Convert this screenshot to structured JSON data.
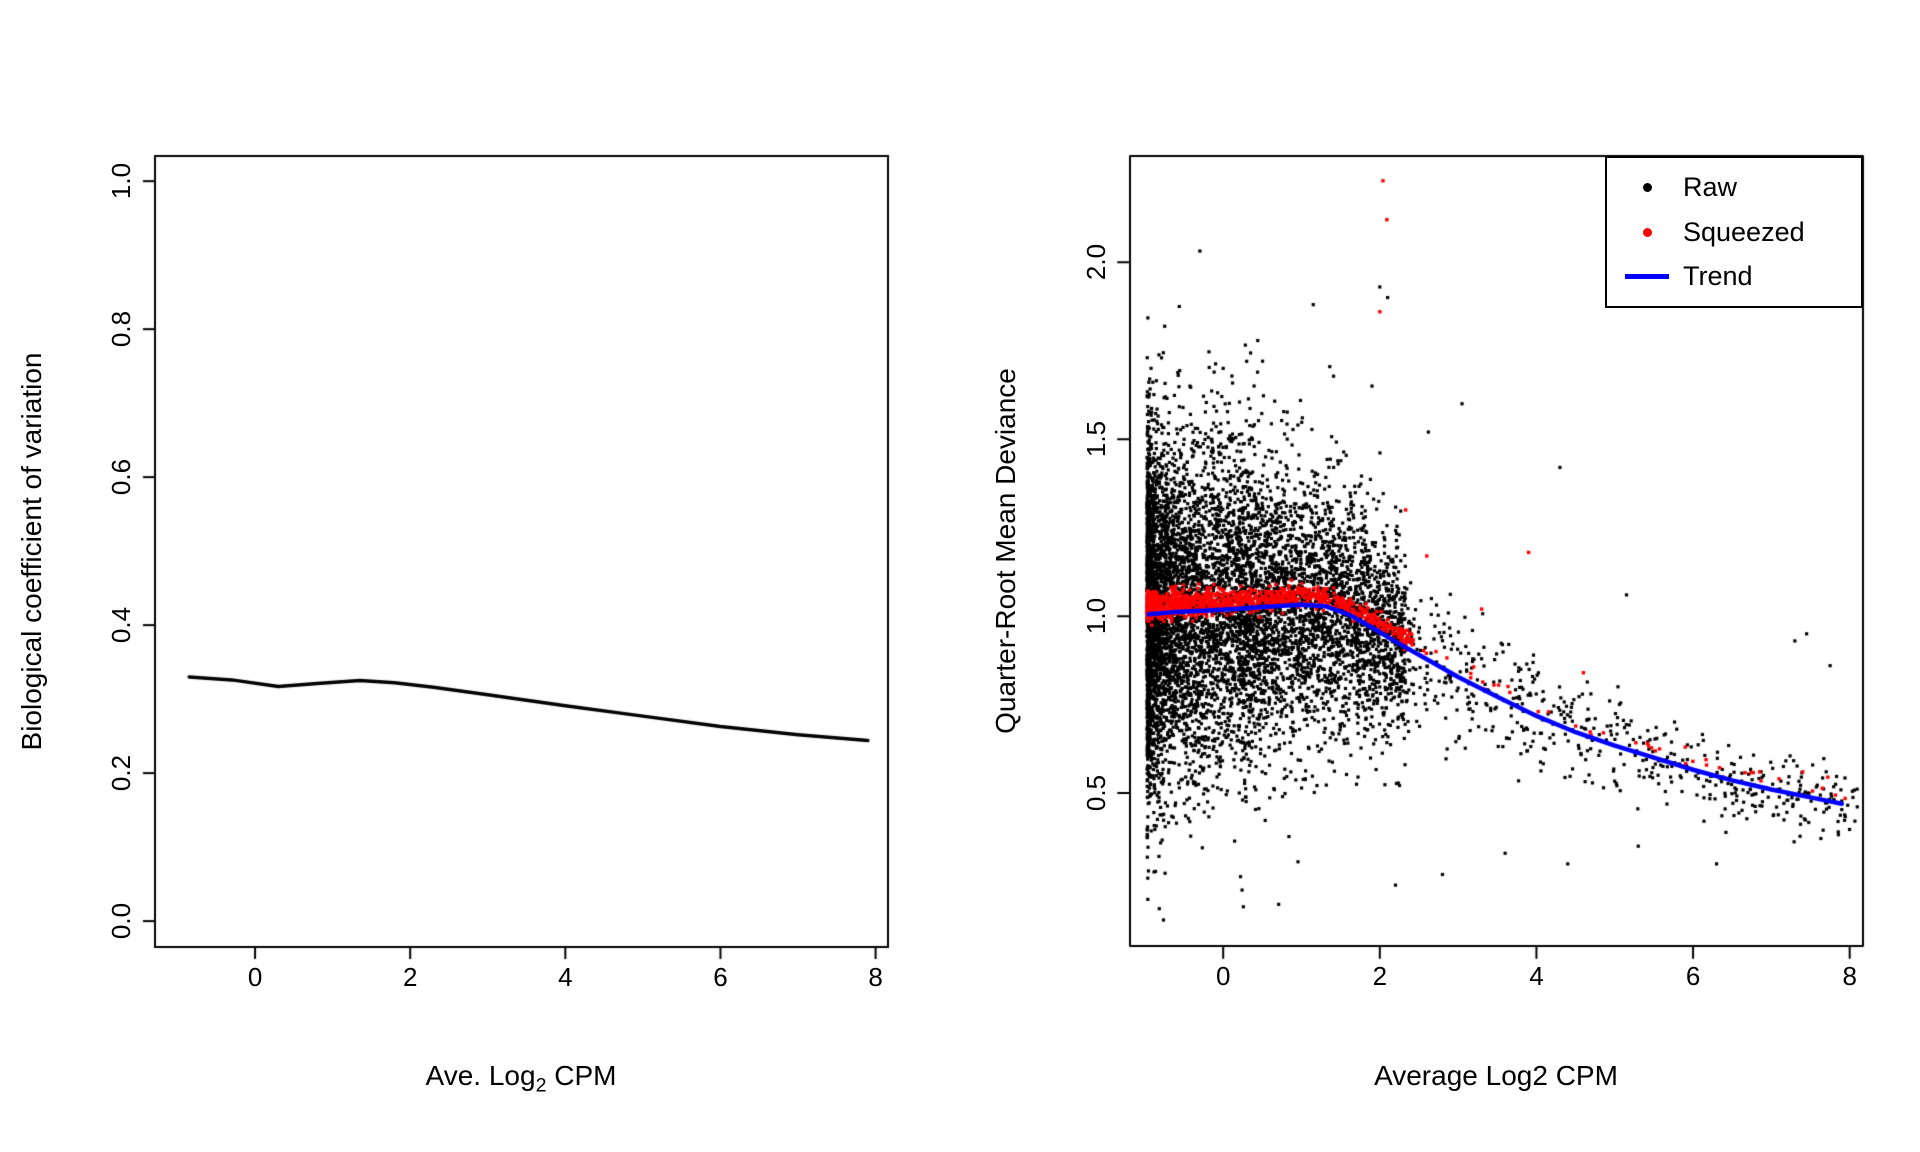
{
  "figure": {
    "background": "#ffffff"
  },
  "chart_data": [
    {
      "type": "line",
      "title": "",
      "xlabel_parts": {
        "prefix": "Ave. Log",
        "sub": "2",
        "suffix": " CPM"
      },
      "ylabel": "Biological coefficient of variation",
      "xlim": [
        -1.29,
        8.16
      ],
      "ylim": [
        -0.035,
        1.034
      ],
      "xticks": [
        0,
        2,
        4,
        6,
        8
      ],
      "yticks": [
        "0.0",
        "0.2",
        "0.4",
        "0.6",
        "0.8",
        "1.0"
      ],
      "grid": false,
      "series": [
        {
          "name": "bcv-trend",
          "color": "#000000",
          "width": 3.5,
          "points": [
            [
              -0.85,
              0.33
            ],
            [
              -0.3,
              0.326
            ],
            [
              0.3,
              0.317
            ],
            [
              0.8,
              0.321
            ],
            [
              1.35,
              0.325
            ],
            [
              1.8,
              0.322
            ],
            [
              2.3,
              0.316
            ],
            [
              3.0,
              0.306
            ],
            [
              4.0,
              0.291
            ],
            [
              5.0,
              0.277
            ],
            [
              6.0,
              0.263
            ],
            [
              7.0,
              0.252
            ],
            [
              7.9,
              0.244
            ]
          ]
        }
      ]
    },
    {
      "type": "scatter",
      "title": "",
      "xlabel": "Average Log2 CPM",
      "ylabel": "Quarter-Root Mean Deviance",
      "xlim": [
        -1.19,
        8.17
      ],
      "ylim": [
        0.068,
        2.3
      ],
      "xticks": [
        0,
        2,
        4,
        6,
        8
      ],
      "yticks": [
        "0.5",
        "1.0",
        "1.5",
        "2.0"
      ],
      "grid": false,
      "legend": [
        {
          "label": "Raw",
          "color": "#000000",
          "marker": "dot"
        },
        {
          "label": "Squeezed",
          "color": "#ff0000",
          "marker": "dot"
        },
        {
          "label": "Trend",
          "color": "#0000ff",
          "marker": "line"
        }
      ],
      "trend": {
        "color": "#0000ff",
        "width": 4.5,
        "points": [
          [
            -0.95,
            1.005
          ],
          [
            -0.6,
            1.012
          ],
          [
            -0.2,
            1.016
          ],
          [
            0.2,
            1.021
          ],
          [
            0.6,
            1.027
          ],
          [
            1.0,
            1.032
          ],
          [
            1.3,
            1.028
          ],
          [
            1.6,
            1.005
          ],
          [
            1.9,
            0.968
          ],
          [
            2.2,
            0.928
          ],
          [
            2.6,
            0.878
          ],
          [
            3.0,
            0.828
          ],
          [
            3.5,
            0.772
          ],
          [
            4.0,
            0.718
          ],
          [
            4.5,
            0.672
          ],
          [
            5.0,
            0.634
          ],
          [
            5.5,
            0.6
          ],
          [
            6.0,
            0.566
          ],
          [
            6.5,
            0.536
          ],
          [
            7.0,
            0.51
          ],
          [
            7.5,
            0.488
          ],
          [
            7.9,
            0.47
          ]
        ]
      },
      "raw_cloud": {
        "color": "#000000",
        "n": 8000,
        "seed": 20240601,
        "dot": 3.2,
        "x_mixture": [
          {
            "w": 0.86,
            "x0": -0.97,
            "span": 3.3,
            "pow": 2.1
          },
          {
            "w": 0.14,
            "x0": 0.2,
            "span": 7.9,
            "pow": 1.9
          }
        ],
        "y_sd": {
          "base": 0.05,
          "amp": 0.205,
          "width": 3.5
        },
        "offset": 0,
        "y_range": [
          0.13,
          2.28
        ]
      },
      "squeezed_cloud": {
        "color": "#ff0000",
        "n": 1100,
        "seed": 777,
        "dot": 3.4,
        "x_mixture": [
          {
            "w": 0.93,
            "x0": -0.97,
            "span": 3.4,
            "pow": 1.9
          },
          {
            "w": 0.07,
            "x0": 0.6,
            "span": 7.4,
            "pow": 1.4
          }
        ],
        "y_sd": {
          "base": 0.01,
          "amp": 0.01,
          "width": 2.5
        },
        "offset": 0.025,
        "y_range": [
          0.2,
          2.28
        ]
      },
      "raw_outliers": [
        [
          2.0,
          1.93
        ],
        [
          2.1,
          1.9
        ],
        [
          1.15,
          1.88
        ],
        [
          0.3,
          1.72
        ],
        [
          0.0,
          1.7
        ],
        [
          2.62,
          1.52
        ],
        [
          3.05,
          1.6
        ],
        [
          4.3,
          1.42
        ],
        [
          1.9,
          1.65
        ],
        [
          5.15,
          1.06
        ],
        [
          7.3,
          0.93
        ],
        [
          7.45,
          0.95
        ],
        [
          7.75,
          0.86
        ],
        [
          6.9,
          0.55
        ],
        [
          3.6,
          0.33
        ],
        [
          4.4,
          0.3
        ],
        [
          5.3,
          0.35
        ],
        [
          6.3,
          0.3
        ],
        [
          2.8,
          0.27
        ],
        [
          2.2,
          0.24
        ]
      ],
      "squeezed_outliers": [
        [
          2.04,
          2.23
        ],
        [
          2.09,
          2.12
        ],
        [
          2.0,
          1.86
        ],
        [
          2.33,
          1.3
        ],
        [
          2.6,
          1.17
        ],
        [
          3.9,
          1.18
        ],
        [
          3.3,
          1.02
        ],
        [
          4.6,
          0.84
        ],
        [
          5.9,
          0.63
        ],
        [
          6.85,
          0.56
        ],
        [
          7.4,
          0.56
        ],
        [
          7.72,
          0.545
        ]
      ]
    }
  ]
}
